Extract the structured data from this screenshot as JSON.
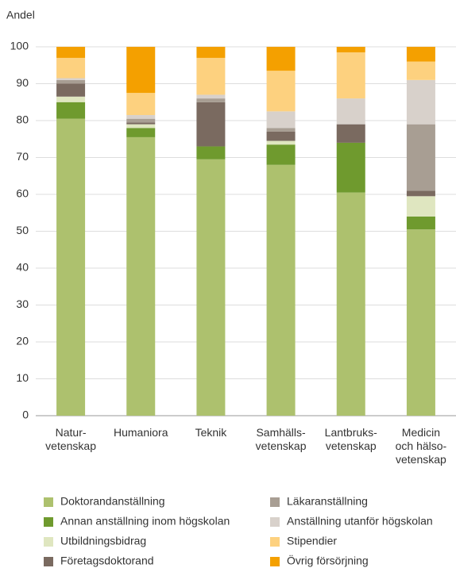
{
  "chart_data": {
    "type": "stacked_bar",
    "y_label": "Andel",
    "categories": [
      "Natur-\nvetenskap",
      "Humaniora",
      "Teknik",
      "Samhälls-\nvetenskap",
      "Lantbruks-\nvetenskap",
      "Medicin\noch hälso-\nvetenskap"
    ],
    "series": [
      {
        "name": "Doktorandanställning",
        "color": "#adc16e",
        "values": [
          80.5,
          75.5,
          69.5,
          68,
          60.5,
          50.5
        ]
      },
      {
        "name": "Annan anställning inom högskolan",
        "color": "#6f9a2e",
        "values": [
          4.5,
          2.5,
          3.5,
          5.5,
          13.5,
          3.5
        ]
      },
      {
        "name": "Utbildningsbidrag",
        "color": "#dfe6c0",
        "values": [
          1.5,
          1,
          0,
          1,
          0,
          5.5
        ]
      },
      {
        "name": "Företagsdoktorand",
        "color": "#7a6a60",
        "values": [
          3.5,
          0.5,
          12,
          2.5,
          5,
          1.5
        ]
      },
      {
        "name": "Läkaranställning",
        "color": "#a89e93",
        "values": [
          1,
          1,
          1,
          1,
          0,
          18
        ]
      },
      {
        "name": "Anställning utanför högskolan",
        "color": "#d8d1cb",
        "values": [
          0.5,
          1,
          1,
          4.5,
          7,
          12
        ]
      },
      {
        "name": "Stipendier",
        "color": "#fdd17f",
        "values": [
          5.5,
          6,
          10,
          11,
          12.5,
          5
        ]
      },
      {
        "name": "Övrig försörjning",
        "color": "#f4a000",
        "values": [
          3,
          12.5,
          3,
          6.5,
          1.5,
          4
        ]
      }
    ],
    "ylim": [
      0,
      100
    ],
    "yticks": [
      0,
      10,
      20,
      30,
      40,
      50,
      60,
      70,
      80,
      90,
      100
    ],
    "grid": true
  }
}
